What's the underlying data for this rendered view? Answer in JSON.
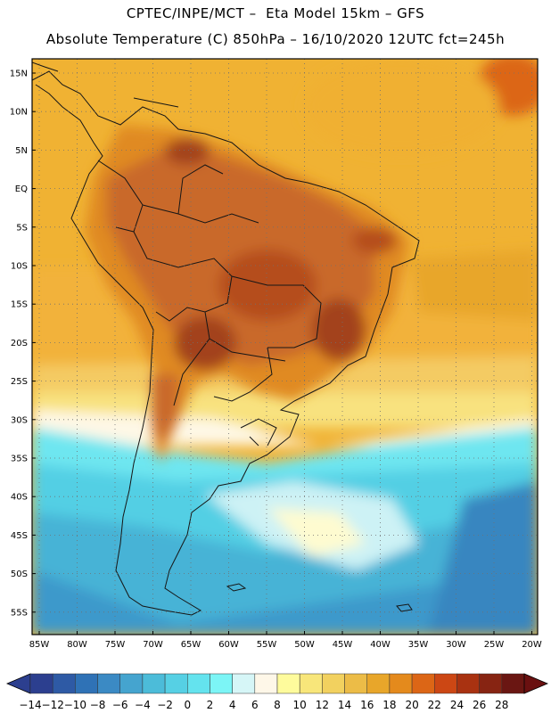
{
  "header": {
    "line1": "CPTEC/INPE/MCT –  Eta Model 15km – GFS",
    "line2": "Absolute Temperature (C) 850hPa – 16/10/2020 12UTC fct=245h"
  },
  "map": {
    "lat_labels": [
      "15N",
      "10N",
      "5N",
      "EQ",
      "5S",
      "10S",
      "15S",
      "20S",
      "25S",
      "30S",
      "35S",
      "40S",
      "45S",
      "50S",
      "55S"
    ],
    "lon_labels": [
      "85W",
      "80W",
      "75W",
      "70W",
      "65W",
      "60W",
      "55W",
      "50W",
      "45W",
      "40W",
      "35W",
      "30W",
      "25W",
      "20W"
    ],
    "grid": "dotted",
    "colors": {
      "land_outline": "#1a1a1a",
      "warm_ocean": "#f0b033",
      "hot_land": "#c9692a"
    }
  },
  "colorbar": {
    "labels": [
      "-14",
      "-12",
      "-10",
      "-8",
      "-6",
      "-4",
      "-2",
      "0",
      "2",
      "4",
      "6",
      "8",
      "10",
      "12",
      "14",
      "16",
      "18",
      "20",
      "22",
      "24",
      "26",
      "28"
    ],
    "colors": [
      "#2c3f8f",
      "#2e5aa5",
      "#2f72b6",
      "#3b8ac4",
      "#45a4cf",
      "#4cbcd9",
      "#56d0e4",
      "#64e3ee",
      "#7cf5f6",
      "#d6f6f7",
      "#fef7e8",
      "#fefb9c",
      "#f8e67a",
      "#f2d15f",
      "#ecbc47",
      "#e8a62a",
      "#e48a1c",
      "#dc6616",
      "#cc4714",
      "#a93211",
      "#872412",
      "#6a1612"
    ]
  }
}
